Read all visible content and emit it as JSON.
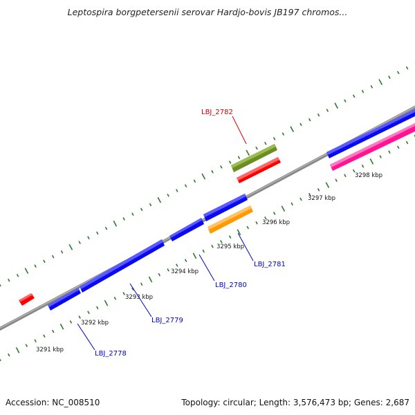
{
  "title": "Leptospira borgpetersenii serovar Hardjo-bovis JB197 chromos...",
  "footer": {
    "accession": "Accession: NC_008510",
    "topology": "Topology: circular; Length: 3,576,473 bp; Genes: 2,687"
  },
  "colors": {
    "axis": "#888888",
    "ticks": "#2a7a2a",
    "blue_gene": "#0a0af0",
    "red_gene": "#ff0000",
    "olive_gene": "#6b8e23",
    "orange_gene": "#ff9900",
    "pink_gene": "#ff1493",
    "label_blue": "#0000cc",
    "label_red": "#cc0000"
  },
  "scale_labels": [
    "3291 kbp",
    "3292 kbp",
    "3293 kbp",
    "3294 kbp",
    "3295 kbp",
    "3296 kbp",
    "3297 kbp",
    "3298 kbp"
  ],
  "gene_labels": [
    {
      "text": "LBJ_2778",
      "color": "blue"
    },
    {
      "text": "LBJ_2779",
      "color": "blue"
    },
    {
      "text": "LBJ_2780",
      "color": "blue"
    },
    {
      "text": "LBJ_2781",
      "color": "blue"
    },
    {
      "text": "LBJ_2782",
      "color": "red"
    }
  ]
}
